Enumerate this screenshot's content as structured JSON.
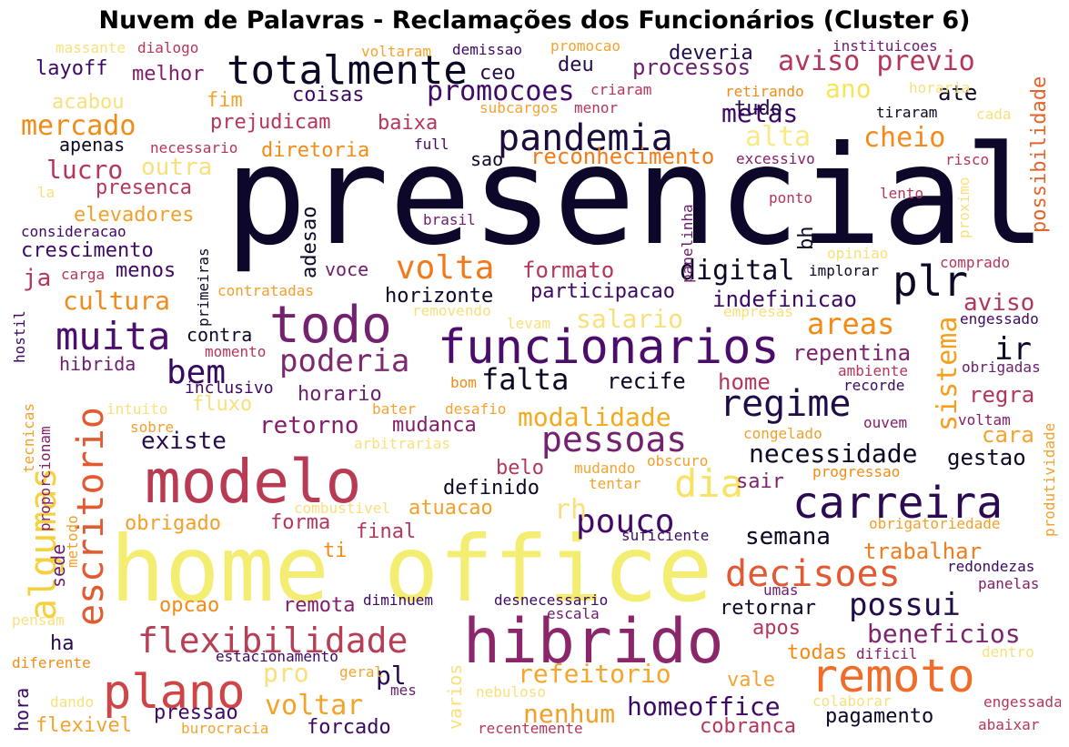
{
  "title": "Nuvem de Palavras - Reclamações dos Funcionários (Cluster 6)",
  "chart_data": {
    "type": "wordcloud",
    "title": "Nuvem de Palavras - Reclamações dos Funcionários (Cluster 6)",
    "colormap": "inferno",
    "background": "#ffffff",
    "words": [
      {
        "text": "presencial",
        "color": "#0d0829"
      },
      {
        "text": "home office",
        "color": "#f3ee72"
      },
      {
        "text": "modelo",
        "color": "#b83a53"
      },
      {
        "text": "hibrido",
        "color": "#8a2669"
      },
      {
        "text": "todo",
        "color": "#72226e"
      },
      {
        "text": "funcionarios",
        "color": "#4b0c6b"
      },
      {
        "text": "carreira",
        "color": "#2b0a52"
      },
      {
        "text": "remoto",
        "color": "#ef6c2a"
      },
      {
        "text": "plano",
        "color": "#cf4446"
      },
      {
        "text": "totalmente",
        "color": "#0a0824"
      },
      {
        "text": "pandemia",
        "color": "#1b0c3c"
      },
      {
        "text": "flexibilidade",
        "color": "#b73f55"
      },
      {
        "text": "decisoes",
        "color": "#e35932"
      },
      {
        "text": "muita",
        "color": "#4e0e6d"
      },
      {
        "text": "regime",
        "color": "#1f0c48"
      },
      {
        "text": "escritorio",
        "color": "#e35a31"
      },
      {
        "text": "plr",
        "color": "#0c0826"
      },
      {
        "text": "pouco",
        "color": "#420a68"
      },
      {
        "text": "pessoas",
        "color": "#74216e"
      },
      {
        "text": "algumas",
        "color": "#f7d13d"
      },
      {
        "text": "dia",
        "color": "#f8e264"
      },
      {
        "text": "volta",
        "color": "#f37819"
      },
      {
        "text": "possui",
        "color": "#220c4b"
      },
      {
        "text": "poderia",
        "color": "#7c2a6e"
      },
      {
        "text": "falta",
        "color": "#0c0826"
      },
      {
        "text": "bem",
        "color": "#360961"
      },
      {
        "text": "digital",
        "color": "#0c0826"
      },
      {
        "text": "areas",
        "color": "#f58a12"
      },
      {
        "text": "aviso previo",
        "color": "#b5365b"
      },
      {
        "text": "promocoes",
        "color": "#410a67"
      },
      {
        "text": "mercado",
        "color": "#f08c16"
      },
      {
        "text": "necessidade",
        "color": "#0c0826"
      },
      {
        "text": "cheio",
        "color": "#f5891b"
      },
      {
        "text": "refeitorio",
        "color": "#f4a62a"
      },
      {
        "text": "sistema",
        "color": "#f69e1d"
      },
      {
        "text": "ir",
        "color": "#0c0826"
      },
      {
        "text": "homeoffice",
        "color": "#3d0965"
      },
      {
        "text": "modalidade",
        "color": "#f5a91e"
      },
      {
        "text": "cultura",
        "color": "#f28b1a"
      },
      {
        "text": "voltar",
        "color": "#f3a32a"
      },
      {
        "text": "nenhum",
        "color": "#f2a02a"
      },
      {
        "text": "beneficios",
        "color": "#7c256e"
      },
      {
        "text": "reconhecimento",
        "color": "#f47a16"
      },
      {
        "text": "possibilidade",
        "color": "#e4642b"
      },
      {
        "text": "metas",
        "color": "#3c0a65"
      },
      {
        "text": "processos",
        "color": "#6b1d6e"
      },
      {
        "text": "lucro",
        "color": "#b5365b"
      },
      {
        "text": "existe",
        "color": "#250b4e"
      },
      {
        "text": "retorno",
        "color": "#841e6a"
      },
      {
        "text": "semana",
        "color": "#0c0826"
      },
      {
        "text": "formato",
        "color": "#b5365b"
      },
      {
        "text": "pessoas",
        "color": "#74216e"
      },
      {
        "text": "salario",
        "color": "#f8e07c"
      },
      {
        "text": "alta",
        "color": "#f8ea88"
      },
      {
        "text": "ano",
        "color": "#f8e45a"
      },
      {
        "text": "trabalhar",
        "color": "#ef7e22"
      },
      {
        "text": "rh",
        "color": "#f8e07c"
      },
      {
        "text": "repentina",
        "color": "#7c256e"
      },
      {
        "text": "aviso",
        "color": "#b5365b"
      },
      {
        "text": "adesao",
        "color": "#0c0826"
      },
      {
        "text": "bh",
        "color": "#0c0826"
      },
      {
        "text": "voce",
        "color": "#6b1d6e"
      },
      {
        "text": "horizonte",
        "color": "#0c0826"
      },
      {
        "text": "participacao",
        "color": "#3d0965"
      },
      {
        "text": "indefinicao",
        "color": "#3d0965"
      },
      {
        "text": "gestao",
        "color": "#0c0826"
      },
      {
        "text": "cara",
        "color": "#f5a330"
      },
      {
        "text": "regra",
        "color": "#b5365b"
      },
      {
        "text": "mudanca",
        "color": "#841e6a"
      },
      {
        "text": "horario",
        "color": "#6b1d6e"
      },
      {
        "text": "recife",
        "color": "#0c0826"
      },
      {
        "text": "home",
        "color": "#b5365b"
      },
      {
        "text": "definido",
        "color": "#0c0826"
      },
      {
        "text": "sair",
        "color": "#7c256e"
      },
      {
        "text": "belo",
        "color": "#b5365b"
      },
      {
        "text": "atuacao",
        "color": "#f2a02a"
      },
      {
        "text": "obrigado",
        "color": "#f2a02a"
      },
      {
        "text": "forma",
        "color": "#b5365b"
      },
      {
        "text": "final",
        "color": "#b5365b"
      },
      {
        "text": "ti",
        "color": "#f28b1a"
      },
      {
        "text": "opcao",
        "color": "#f08c16"
      },
      {
        "text": "remota",
        "color": "#841e6a"
      },
      {
        "text": "retornar",
        "color": "#0c0826"
      },
      {
        "text": "apos",
        "color": "#b5365b"
      },
      {
        "text": "todas",
        "color": "#f58a12"
      },
      {
        "text": "vale",
        "color": "#f5a330"
      },
      {
        "text": "pagamento",
        "color": "#0c0826"
      },
      {
        "text": "cobranca",
        "color": "#b5365b"
      },
      {
        "text": "pressao",
        "color": "#3d0965"
      },
      {
        "text": "forcado",
        "color": "#3d0965"
      },
      {
        "text": "flexivel",
        "color": "#f5a330"
      },
      {
        "text": "pl",
        "color": "#250b4e"
      },
      {
        "text": "pro",
        "color": "#f8e07c"
      },
      {
        "text": "ha",
        "color": "#250b4e"
      },
      {
        "text": "hora",
        "color": "#3d0965"
      },
      {
        "text": "varios",
        "color": "#f8e07c"
      },
      {
        "text": "sede",
        "color": "#6b1d6e"
      },
      {
        "text": "hibrida",
        "color": "#6b1d6e"
      },
      {
        "text": "contra",
        "color": "#0c0826"
      },
      {
        "text": "fluxo",
        "color": "#f8e07c"
      },
      {
        "text": "inclusivo",
        "color": "#3d0965"
      },
      {
        "text": "crescimento",
        "color": "#3d0965"
      },
      {
        "text": "menos",
        "color": "#3d0965"
      },
      {
        "text": "ja",
        "color": "#b5365b"
      },
      {
        "text": "elevadores",
        "color": "#f2a02a"
      },
      {
        "text": "presenca",
        "color": "#b5365b"
      },
      {
        "text": "outra",
        "color": "#f8e07c"
      },
      {
        "text": "apenas",
        "color": "#0c0826"
      },
      {
        "text": "diretoria",
        "color": "#f08c16"
      },
      {
        "text": "prejudicam",
        "color": "#b5365b"
      },
      {
        "text": "baixa",
        "color": "#b5365b"
      },
      {
        "text": "fim",
        "color": "#f5a330"
      },
      {
        "text": "acabou",
        "color": "#f8e07c"
      },
      {
        "text": "coisas",
        "color": "#3d0965"
      },
      {
        "text": "tudo",
        "color": "#250b4e"
      },
      {
        "text": "ate",
        "color": "#0c0826"
      },
      {
        "text": "melhor",
        "color": "#841e6a"
      },
      {
        "text": "layoff",
        "color": "#3d0965"
      },
      {
        "text": "deu",
        "color": "#250b4e"
      },
      {
        "text": "ceo",
        "color": "#250b4e"
      },
      {
        "text": "deveria",
        "color": "#250b4e"
      },
      {
        "text": "sao",
        "color": "#0c0826"
      },
      {
        "text": "full",
        "color": "#3d0965"
      },
      {
        "text": "massante",
        "color": "#f8e07c"
      },
      {
        "text": "dialogo",
        "color": "#b5365b"
      },
      {
        "text": "voltaram",
        "color": "#f5a330"
      },
      {
        "text": "demissao",
        "color": "#3d0965"
      },
      {
        "text": "promocao",
        "color": "#f5a330"
      },
      {
        "text": "instituicoes",
        "color": "#6b1d6e"
      },
      {
        "text": "criaram",
        "color": "#b5365b"
      },
      {
        "text": "subcargos",
        "color": "#f5a330"
      },
      {
        "text": "menor",
        "color": "#b5365b"
      },
      {
        "text": "retirando",
        "color": "#f08c16"
      },
      {
        "text": "horaria",
        "color": "#f8e07c"
      },
      {
        "text": "tiraram",
        "color": "#0c0826"
      },
      {
        "text": "cada",
        "color": "#f8e07c"
      },
      {
        "text": "necessario",
        "color": "#b5365b"
      },
      {
        "text": "panelinha",
        "color": "#6b1d6e"
      },
      {
        "text": "excessivo",
        "color": "#841e6a"
      },
      {
        "text": "risco",
        "color": "#b5365b"
      },
      {
        "text": "ponto",
        "color": "#b5365b"
      },
      {
        "text": "lento",
        "color": "#b5365b"
      },
      {
        "text": "proximo",
        "color": "#f8e07c"
      },
      {
        "text": "la",
        "color": "#f8e07c"
      },
      {
        "text": "consideracao",
        "color": "#3d0965"
      },
      {
        "text": "carga",
        "color": "#b5365b"
      },
      {
        "text": "brasil",
        "color": "#6b1d6e"
      },
      {
        "text": "primeiras",
        "color": "#0c0826"
      },
      {
        "text": "opiniao",
        "color": "#f8e07c"
      },
      {
        "text": "implorar",
        "color": "#0c0826"
      },
      {
        "text": "comprado",
        "color": "#b5365b"
      },
      {
        "text": "contratadas",
        "color": "#f2a02a"
      },
      {
        "text": "removendo",
        "color": "#f8e07c"
      },
      {
        "text": "empresas",
        "color": "#f8e07c"
      },
      {
        "text": "engessado",
        "color": "#3d0965"
      },
      {
        "text": "hostil",
        "color": "#3d0965"
      },
      {
        "text": "momento",
        "color": "#b5365b"
      },
      {
        "text": "levam",
        "color": "#f8e07c"
      },
      {
        "text": "ambiente",
        "color": "#b5365b"
      },
      {
        "text": "obrigadas",
        "color": "#6b1d6e"
      },
      {
        "text": "tecnicas",
        "color": "#f2a02a"
      },
      {
        "text": "proporcionam",
        "color": "#841e6a"
      },
      {
        "text": "intuito",
        "color": "#f8e07c"
      },
      {
        "text": "bom",
        "color": "#f08c16"
      },
      {
        "text": "recorde",
        "color": "#3d0965"
      },
      {
        "text": "sobre",
        "color": "#f2a02a"
      },
      {
        "text": "bater",
        "color": "#f5a330"
      },
      {
        "text": "desafio",
        "color": "#f5a330"
      },
      {
        "text": "ouvem",
        "color": "#841e6a"
      },
      {
        "text": "voltam",
        "color": "#841e6a"
      },
      {
        "text": "arbitrarias",
        "color": "#f8e07c"
      },
      {
        "text": "congelado",
        "color": "#f2a02a"
      },
      {
        "text": "obscuro",
        "color": "#f2a02a"
      },
      {
        "text": "mudando",
        "color": "#f5a330"
      },
      {
        "text": "tentar",
        "color": "#f5a330"
      },
      {
        "text": "progressao",
        "color": "#f08c16"
      },
      {
        "text": "produtividade",
        "color": "#f2a02a"
      },
      {
        "text": "metodo",
        "color": "#f2a02a"
      },
      {
        "text": "combustivel",
        "color": "#f8e07c"
      },
      {
        "text": "suficiente",
        "color": "#3d0965"
      },
      {
        "text": "obrigatoriedade",
        "color": "#f2a02a"
      },
      {
        "text": "redondezas",
        "color": "#3d0965"
      },
      {
        "text": "panelas",
        "color": "#841e6a"
      },
      {
        "text": "umas",
        "color": "#6b1d6e"
      },
      {
        "text": "diminuem",
        "color": "#3d0965"
      },
      {
        "text": "desnecessario",
        "color": "#3d0965"
      },
      {
        "text": "escala",
        "color": "#6b1d6e"
      },
      {
        "text": "pensam",
        "color": "#f8e07c"
      },
      {
        "text": "estacionamento",
        "color": "#3d0965"
      },
      {
        "text": "geral",
        "color": "#f5a330"
      },
      {
        "text": "dificil",
        "color": "#841e6a"
      },
      {
        "text": "dentro",
        "color": "#f8e07c"
      },
      {
        "text": "diferente",
        "color": "#f08c16"
      },
      {
        "text": "mes",
        "color": "#6b1d6e"
      },
      {
        "text": "nebuloso",
        "color": "#f8e07c"
      },
      {
        "text": "dando",
        "color": "#f8e07c"
      },
      {
        "text": "burocracia",
        "color": "#f5a330"
      },
      {
        "text": "recentemente",
        "color": "#b5365b"
      },
      {
        "text": "colaborar",
        "color": "#f8e07c"
      },
      {
        "text": "engessada",
        "color": "#b5365b"
      },
      {
        "text": "abaixar",
        "color": "#b5365b"
      }
    ]
  }
}
